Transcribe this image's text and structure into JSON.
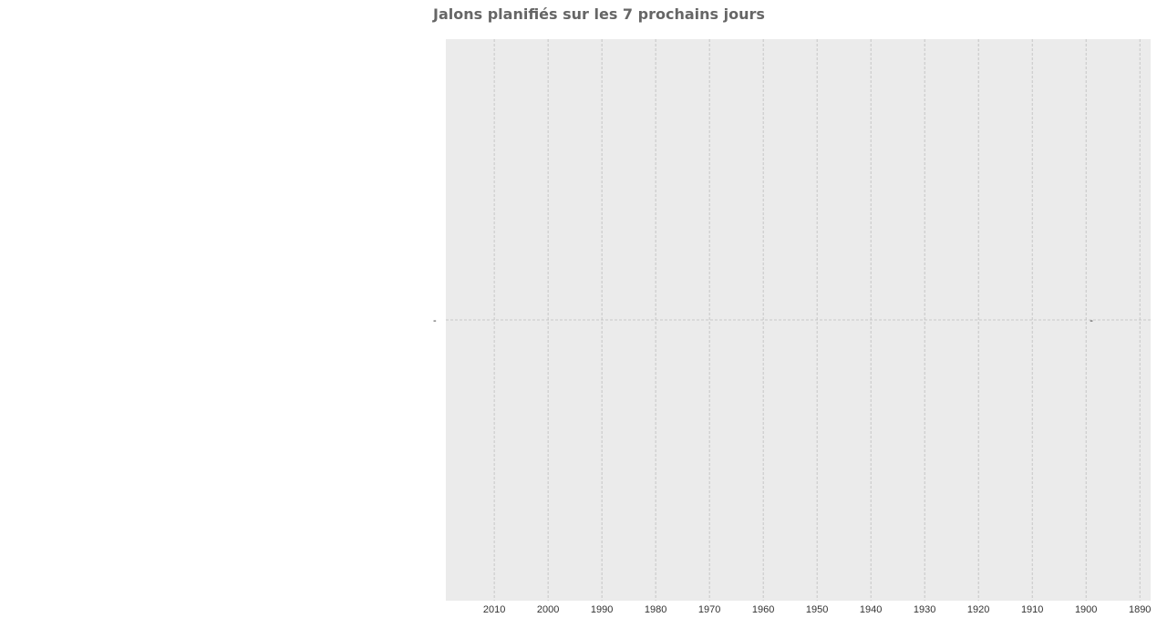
{
  "chart_data": {
    "type": "scatter",
    "title": "Jalons planifiés sur les 7 prochains jours",
    "xlabel": "",
    "ylabel": "",
    "x_axis_reversed": true,
    "xlim": [
      2019,
      1888
    ],
    "x_ticks": [
      "2010",
      "2000",
      "1990",
      "1980",
      "1970",
      "1960",
      "1950",
      "1940",
      "1930",
      "1920",
      "1910",
      "1900",
      "1890"
    ],
    "categories": [
      "-"
    ],
    "points": [
      {
        "category": "-",
        "x": 1899,
        "label": "-"
      }
    ],
    "grid": true,
    "legend": "none",
    "colors": {
      "plot_background": "#ebebeb",
      "gridline": "#bdbdbd",
      "text": "#333333",
      "title": "#666666"
    }
  }
}
